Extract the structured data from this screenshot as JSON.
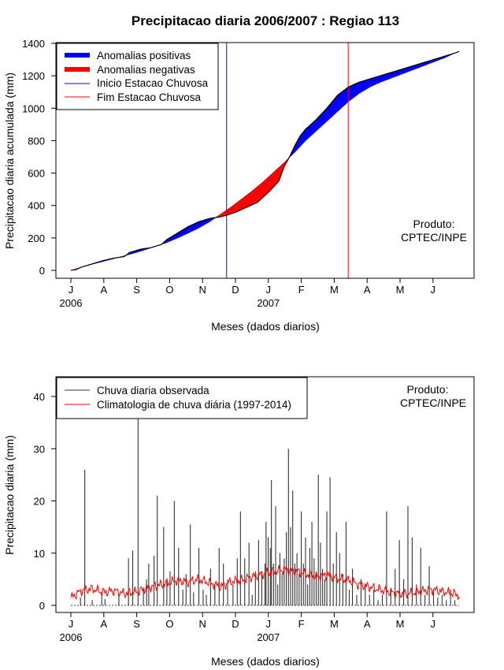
{
  "chart_data": [
    {
      "type": "area",
      "title": "Precipitacao diaria 2006/2007 : Regiao 113",
      "xlabel": "Meses (dados diarios)",
      "ylabel": "Precipitacao diaria acumulada (mm)",
      "ylim": [
        -50,
        1400
      ],
      "yticks": [
        0,
        200,
        400,
        600,
        800,
        1000,
        1200,
        1400
      ],
      "months": [
        "J",
        "A",
        "S",
        "O",
        "N",
        "D",
        "J",
        "F",
        "M",
        "A",
        "M",
        "J"
      ],
      "year_labels": [
        {
          "label": "2006",
          "month_index": 0
        },
        {
          "label": "2007",
          "month_index": 6
        }
      ],
      "day_range": [
        0,
        364
      ],
      "legend": [
        "Anomalias positivas",
        "Anomalias negativas",
        "Inicio Estacao Chuvosa",
        "Fim Estacao Chuvosa"
      ],
      "product_text": [
        "Produto:",
        "CPTEC/INPE"
      ],
      "rain_season_start_day": 146,
      "rain_season_end_day": 260,
      "colors": {
        "positive": "#0000ff",
        "negative": "#ff0000",
        "start_line": "#0000ff",
        "end_line": "#ff0000"
      },
      "observed_cumulative": {
        "day": [
          0,
          5,
          10,
          15,
          20,
          30,
          40,
          50,
          55,
          60,
          65,
          75,
          85,
          90,
          100,
          110,
          120,
          130,
          140,
          146,
          155,
          165,
          175,
          185,
          195,
          200,
          205,
          210,
          215,
          220,
          230,
          240,
          250,
          260,
          270,
          280,
          290,
          300,
          310,
          320,
          330,
          340,
          350,
          360,
          364
        ],
        "mm": [
          0,
          5,
          20,
          30,
          40,
          60,
          75,
          85,
          110,
          120,
          130,
          140,
          160,
          190,
          230,
          270,
          300,
          320,
          330,
          340,
          360,
          390,
          420,
          480,
          550,
          640,
          700,
          770,
          830,
          870,
          930,
          1000,
          1080,
          1130,
          1160,
          1180,
          1200,
          1220,
          1240,
          1260,
          1280,
          1300,
          1320,
          1340,
          1350
        ]
      },
      "climatology_cumulative": {
        "day": [
          0,
          10,
          20,
          30,
          40,
          50,
          60,
          70,
          80,
          90,
          100,
          110,
          120,
          130,
          140,
          150,
          160,
          170,
          180,
          190,
          200,
          210,
          220,
          230,
          240,
          250,
          260,
          270,
          280,
          290,
          300,
          310,
          320,
          330,
          340,
          350,
          360,
          364
        ],
        "mm": [
          0,
          20,
          38,
          55,
          72,
          90,
          108,
          128,
          150,
          172,
          200,
          230,
          262,
          300,
          345,
          390,
          440,
          490,
          545,
          605,
          665,
          730,
          800,
          860,
          920,
          980,
          1040,
          1090,
          1130,
          1160,
          1185,
          1210,
          1235,
          1260,
          1285,
          1310,
          1340,
          1350
        ]
      }
    },
    {
      "type": "bar",
      "title": "",
      "xlabel": "Meses (dados diarios)",
      "ylabel": "Precipitacao diaria (mm)",
      "ylim": [
        -1.5,
        44
      ],
      "yticks": [
        0,
        10,
        20,
        30,
        40
      ],
      "months": [
        "J",
        "A",
        "S",
        "O",
        "N",
        "D",
        "J",
        "F",
        "M",
        "A",
        "M",
        "J"
      ],
      "year_labels": [
        {
          "label": "2006",
          "month_index": 0
        },
        {
          "label": "2007",
          "month_index": 6
        }
      ],
      "day_range": [
        0,
        364
      ],
      "legend": [
        "Chuva diaria observada",
        "Climatologia de chuva diária (1997-2014)"
      ],
      "product_text": [
        "Produto:",
        "CPTEC/INPE"
      ],
      "colors": {
        "observed": "#333333",
        "climatology": "#ff0000"
      },
      "observed_daily": {
        "day": [
          9,
          13,
          20,
          29,
          32,
          45,
          54,
          58,
          63,
          68,
          71,
          73,
          78,
          81,
          87,
          90,
          93,
          97,
          101,
          105,
          108,
          112,
          115,
          120,
          124,
          127,
          131,
          135,
          139,
          143,
          147,
          152,
          156,
          159,
          163,
          167,
          170,
          173,
          176,
          179,
          182,
          183,
          185,
          187,
          188,
          190,
          192,
          194,
          196,
          198,
          200,
          202,
          204,
          206,
          208,
          210,
          212,
          214,
          216,
          218,
          220,
          222,
          224,
          226,
          228,
          230,
          232,
          234,
          236,
          238,
          240,
          243,
          246,
          249,
          252,
          255,
          258,
          261,
          264,
          268,
          272,
          276,
          280,
          284,
          288,
          292,
          296,
          300,
          304,
          308,
          312,
          316,
          320,
          324,
          328,
          332,
          336,
          340,
          344,
          348,
          352,
          356,
          360
        ],
        "mm": [
          1.5,
          26,
          1,
          2.5,
          1.2,
          2,
          9,
          10.5,
          36,
          3,
          5,
          8,
          9.5,
          21,
          15,
          5,
          6.5,
          20,
          11,
          3,
          6,
          15.5,
          2.5,
          11,
          3,
          2,
          7,
          4,
          11,
          8,
          5,
          4,
          9,
          18,
          9,
          12,
          2,
          6.5,
          12.5,
          6.5,
          8,
          16,
          13,
          11,
          24,
          8,
          19,
          4,
          10,
          6,
          9,
          14,
          30,
          15,
          22,
          8,
          10,
          6,
          18,
          8,
          13,
          4,
          11,
          16,
          9,
          6,
          25,
          12,
          7,
          5,
          18,
          24.5,
          8,
          14,
          10,
          6,
          16,
          3,
          7,
          2,
          5,
          4,
          2,
          3,
          1,
          2,
          18,
          3,
          7,
          12.5,
          5,
          19,
          13,
          4,
          11,
          2,
          7.5,
          3,
          1.5,
          2,
          1,
          3,
          1
        ]
      },
      "climatology_daily": {
        "day": [
          0,
          10,
          20,
          30,
          40,
          50,
          60,
          70,
          80,
          90,
          100,
          110,
          120,
          130,
          140,
          150,
          160,
          170,
          180,
          190,
          200,
          210,
          220,
          230,
          240,
          250,
          260,
          270,
          280,
          290,
          300,
          310,
          320,
          330,
          340,
          350,
          360,
          364
        ],
        "mm": [
          1.5,
          2.8,
          3.2,
          2.5,
          2.8,
          2.3,
          2.5,
          3.2,
          3.8,
          4.2,
          4.8,
          4.5,
          5.0,
          4.3,
          3.6,
          4.5,
          4.8,
          5.5,
          6.0,
          6.5,
          6.8,
          6.6,
          6.0,
          5.5,
          5.8,
          5.2,
          4.8,
          4.0,
          3.5,
          3.0,
          2.5,
          2.2,
          2.4,
          2.8,
          3.0,
          2.6,
          2.2,
          1.8
        ]
      }
    }
  ]
}
